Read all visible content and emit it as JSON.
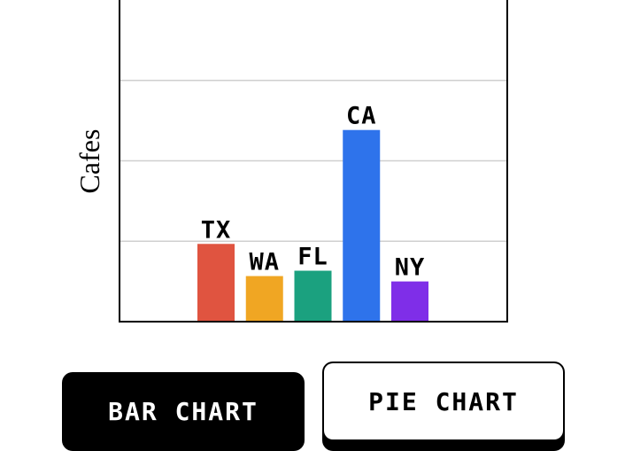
{
  "chart_data": {
    "type": "bar",
    "ylabel": "Cafes",
    "categories": [
      "TX",
      "WA",
      "FL",
      "CA",
      "NY"
    ],
    "values": [
      2.9,
      1.7,
      1.9,
      7.15,
      1.5
    ],
    "colors": [
      "#e05440",
      "#f0a623",
      "#1ba17f",
      "#2e73eb",
      "#7f2ee8"
    ],
    "ylim": [
      0,
      12
    ],
    "gridlines": [
      3,
      6,
      9
    ],
    "grid": true
  },
  "buttons": {
    "bar_chart_label": "BAR CHART",
    "pie_chart_label": "PIE CHART"
  }
}
